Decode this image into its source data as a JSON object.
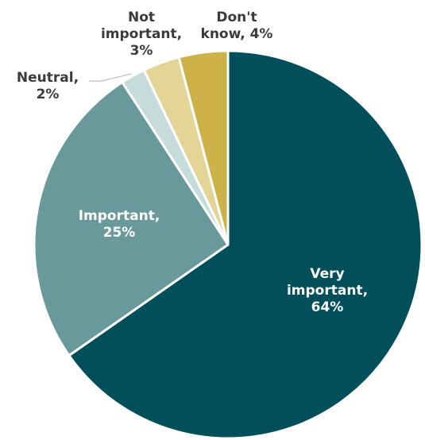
{
  "chart_data": {
    "type": "pie",
    "slices": [
      {
        "label": "Very important",
        "value": 64,
        "display": [
          "Very",
          "important,",
          "64%"
        ],
        "color": "#004f5a",
        "text_color": "#ffffff"
      },
      {
        "label": "Important",
        "value": 25,
        "display": [
          "Important,",
          "25%"
        ],
        "color": "#6a999b",
        "text_color": "#ffffff"
      },
      {
        "label": "Neutral",
        "value": 2,
        "display": [
          "Neutral,",
          "2%"
        ],
        "color": "#c5dcda",
        "text_color": "#3b3b3b"
      },
      {
        "label": "Not important",
        "value": 3,
        "display": [
          "Not",
          "important,",
          "3%"
        ],
        "color": "#e4d596",
        "text_color": "#3b3b3b"
      },
      {
        "label": "Don't know",
        "value": 4,
        "display": [
          "Don't",
          "know, 4%"
        ],
        "color": "#cdb24a",
        "text_color": "#3b3b3b"
      }
    ],
    "start_angle_deg": 0,
    "direction": "clockwise",
    "legend": "none"
  }
}
